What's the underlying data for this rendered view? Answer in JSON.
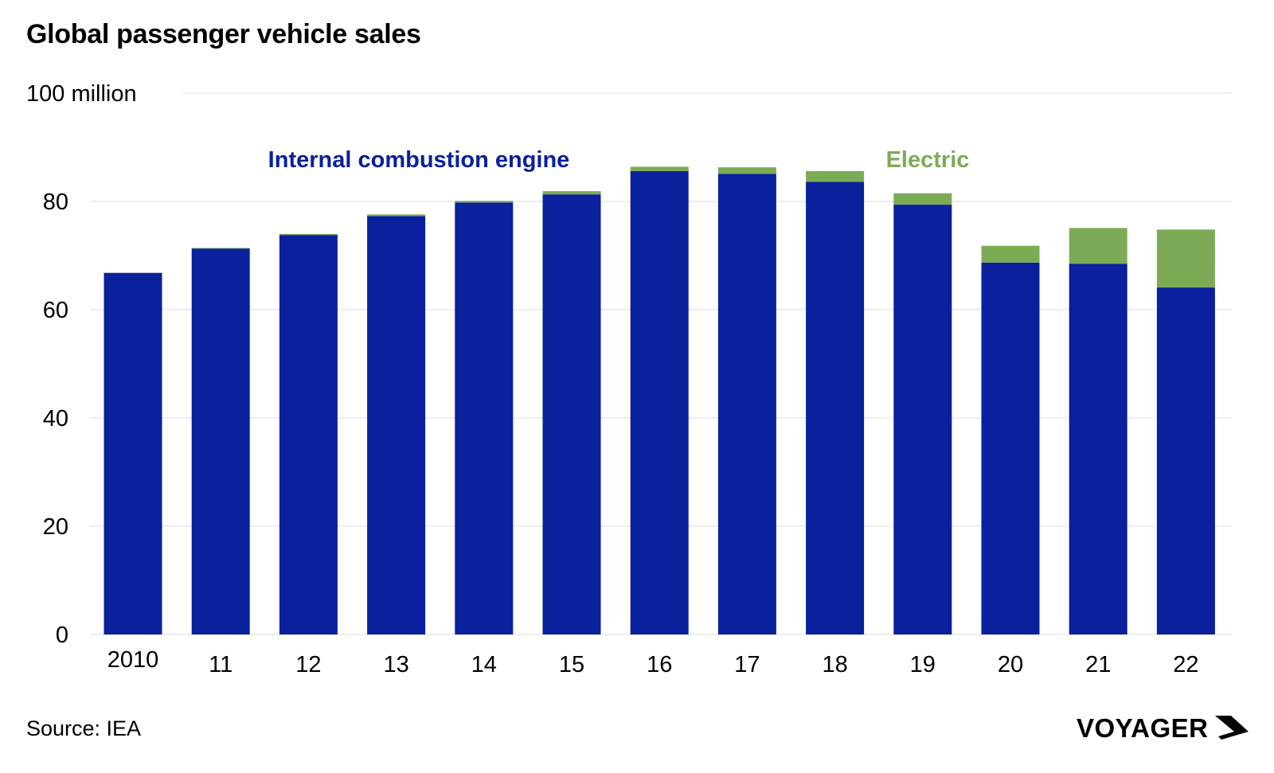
{
  "title": "Global passenger vehicle sales",
  "source": "Source: IEA",
  "brand": "VOYAGER",
  "colors": {
    "ice": "#0b209c",
    "electric": "#7dab55",
    "grid": "#dddddd"
  },
  "chart_data": {
    "type": "bar",
    "stacked": true,
    "title": "Global passenger vehicle sales",
    "ylabel": "100 million",
    "ylim": [
      0,
      100
    ],
    "yticks": [
      0,
      20,
      40,
      60,
      80
    ],
    "categories": [
      "2010",
      "11",
      "12",
      "13",
      "14",
      "15",
      "16",
      "17",
      "18",
      "19",
      "20",
      "21",
      "22"
    ],
    "series": [
      {
        "name": "Internal combustion engine",
        "color": "#0b209c",
        "values": [
          66.8,
          71.3,
          73.8,
          77.3,
          79.8,
          81.3,
          85.6,
          85.1,
          83.6,
          79.4,
          68.7,
          68.5,
          64.1
        ]
      },
      {
        "name": "Electric",
        "color": "#7dab55",
        "values": [
          0.0,
          0.1,
          0.2,
          0.3,
          0.3,
          0.6,
          0.8,
          1.2,
          2.0,
          2.1,
          3.1,
          6.6,
          10.7
        ]
      }
    ],
    "grid": true
  }
}
